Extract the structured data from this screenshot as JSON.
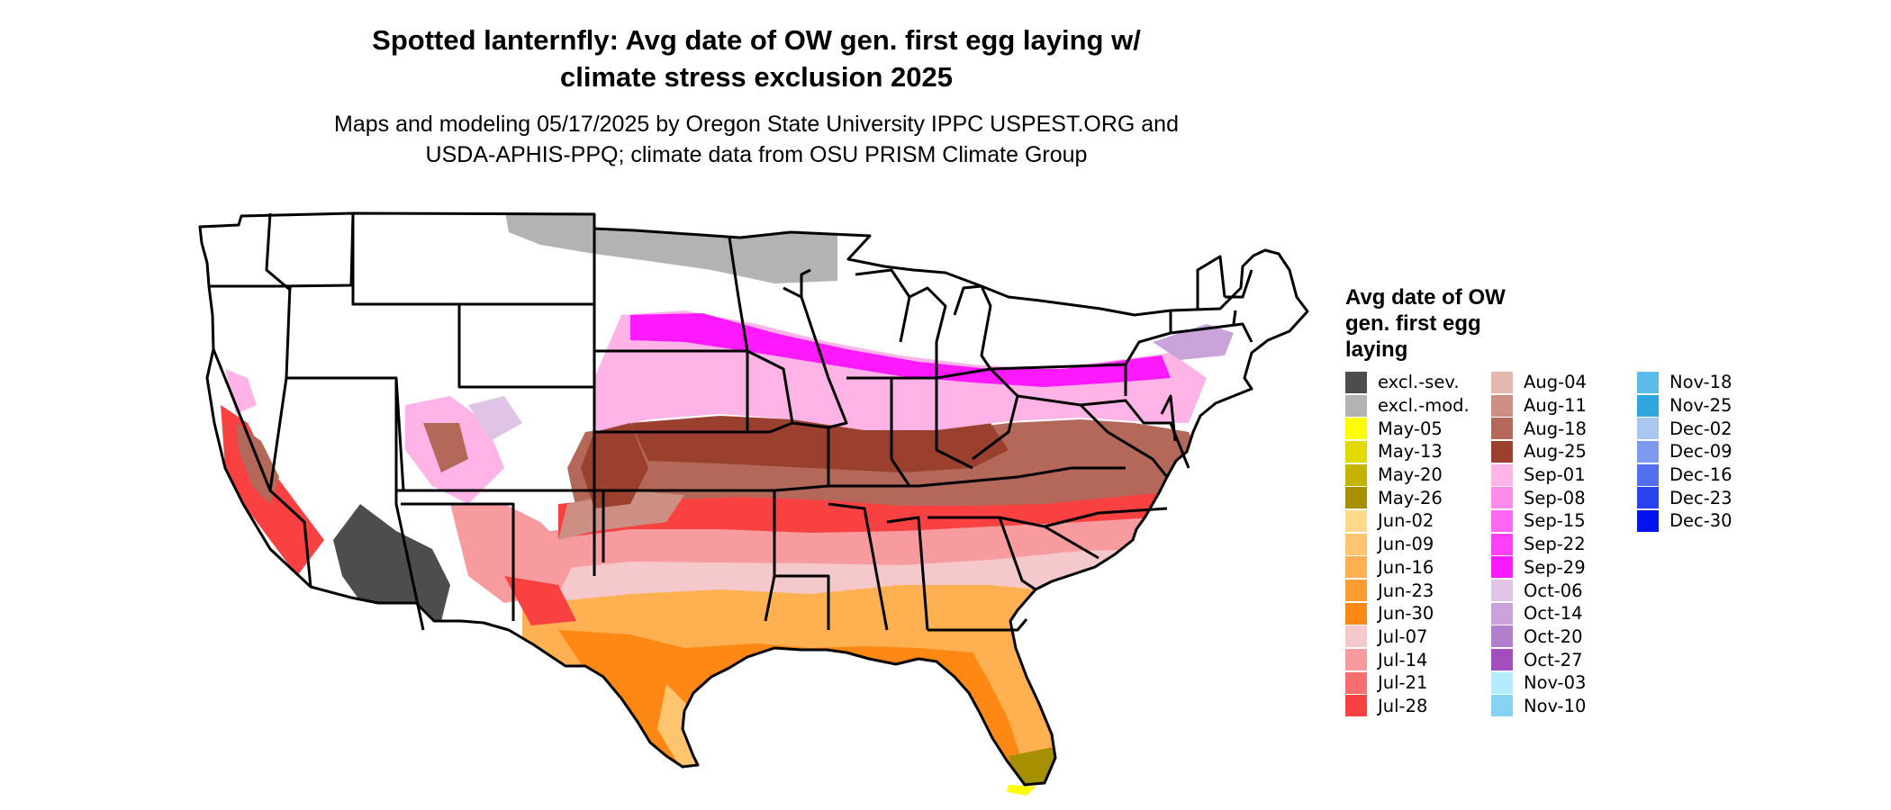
{
  "header": {
    "title_line1": "Spotted lanternfly: Avg date of OW gen. first egg laying w/",
    "title_line2": "climate stress exclusion 2025",
    "subtitle_line1": "Maps and modeling 05/17/2025 by Oregon State University IPPC USPEST.ORG and",
    "subtitle_line2": "USDA-APHIS-PPQ; climate data from OSU PRISM Climate Group"
  },
  "legend": {
    "title_line1": "Avg date of OW",
    "title_line2": "gen. first egg",
    "title_line3": "laying",
    "items": [
      {
        "label": "excl.-sev.",
        "color": "#4d4d4d"
      },
      {
        "label": "excl.-mod.",
        "color": "#b3b3b3"
      },
      {
        "label": "May-05",
        "color": "#ffff00"
      },
      {
        "label": "May-13",
        "color": "#e1da00"
      },
      {
        "label": "May-20",
        "color": "#c4b400"
      },
      {
        "label": "May-26",
        "color": "#a68f00"
      },
      {
        "label": "Jun-02",
        "color": "#ffd98c"
      },
      {
        "label": "Jun-09",
        "color": "#ffc56e"
      },
      {
        "label": "Jun-16",
        "color": "#ffb050"
      },
      {
        "label": "Jun-23",
        "color": "#ff9c32"
      },
      {
        "label": "Jun-30",
        "color": "#ff8714"
      },
      {
        "label": "Jul-07",
        "color": "#f5c8cc"
      },
      {
        "label": "Jul-14",
        "color": "#f79b9e"
      },
      {
        "label": "Jul-21",
        "color": "#f86e70"
      },
      {
        "label": "Jul-28",
        "color": "#fa4142"
      },
      {
        "label": "Aug-04",
        "color": "#e6b7af"
      },
      {
        "label": "Aug-11",
        "color": "#cd8f84"
      },
      {
        "label": "Aug-18",
        "color": "#b46859"
      },
      {
        "label": "Aug-25",
        "color": "#9b402e"
      },
      {
        "label": "Sep-01",
        "color": "#ffb3e6"
      },
      {
        "label": "Sep-08",
        "color": "#ff8ced"
      },
      {
        "label": "Sep-15",
        "color": "#ff66f3"
      },
      {
        "label": "Sep-22",
        "color": "#ff40f9"
      },
      {
        "label": "Sep-29",
        "color": "#ff19ff"
      },
      {
        "label": "Oct-06",
        "color": "#e0c4e6"
      },
      {
        "label": "Oct-14",
        "color": "#c9a3d9"
      },
      {
        "label": "Oct-20",
        "color": "#b27fcc"
      },
      {
        "label": "Oct-27",
        "color": "#a34dbf"
      },
      {
        "label": "Nov-03",
        "color": "#b3ecff"
      },
      {
        "label": "Nov-10",
        "color": "#87d3f5"
      },
      {
        "label": "Nov-18",
        "color": "#5cbdea"
      },
      {
        "label": "Nov-25",
        "color": "#30a6e0"
      },
      {
        "label": "Dec-02",
        "color": "#a9c7f0"
      },
      {
        "label": "Dec-09",
        "color": "#7e9af0"
      },
      {
        "label": "Dec-16",
        "color": "#546ef0"
      },
      {
        "label": "Dec-23",
        "color": "#2a41f0"
      },
      {
        "label": "Dec-30",
        "color": "#0014f0"
      }
    ]
  }
}
